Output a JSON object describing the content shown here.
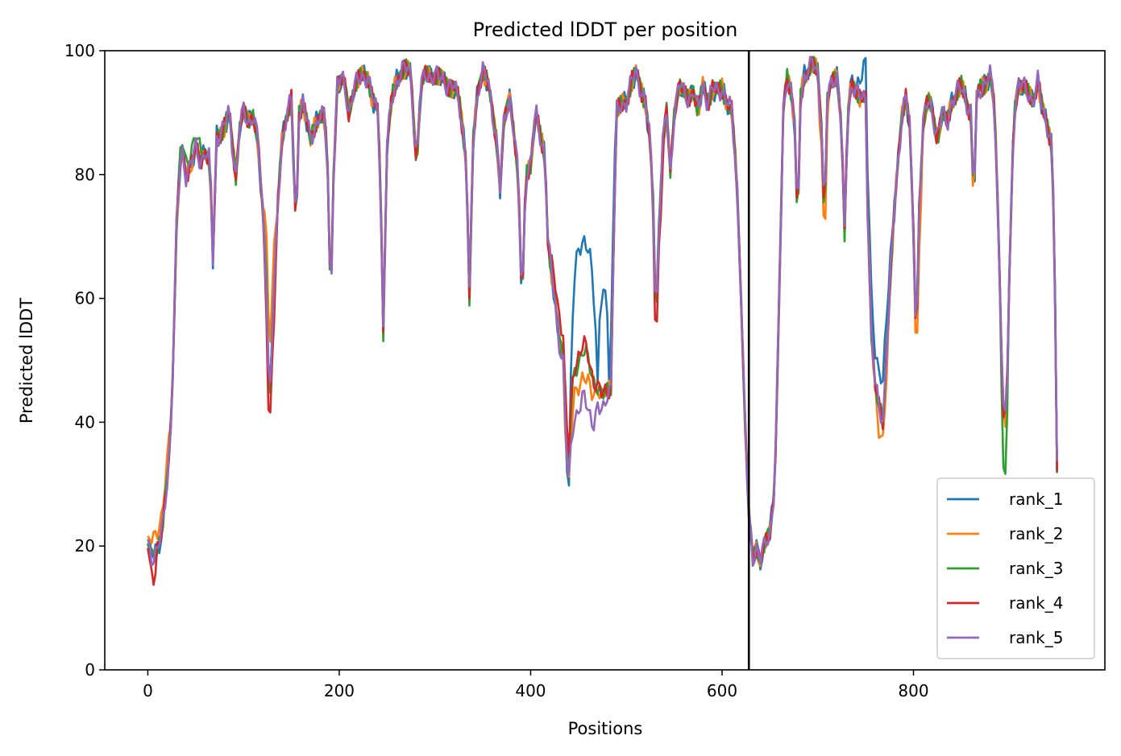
{
  "chart_data": {
    "type": "line",
    "title": "Predicted lDDT per position",
    "xlabel": "Positions",
    "ylabel": "Predicted lDDT",
    "xlim": [
      -45,
      1000
    ],
    "ylim": [
      0,
      100
    ],
    "xticks": [
      0,
      200,
      400,
      600,
      800
    ],
    "yticks": [
      0,
      20,
      40,
      60,
      80,
      100
    ],
    "grid": false,
    "legend_position": "bottom-right",
    "vertical_lines": [
      {
        "x": 628,
        "color": "#000000"
      }
    ],
    "series": [
      {
        "name": "rank_1",
        "color": "#1f77b4",
        "offsets": [
          [
            430,
            440,
            0
          ],
          [
            440,
            470,
            22
          ],
          [
            470,
            482,
            16
          ],
          [
            482,
            490,
            8
          ],
          [
            740,
            780,
            6
          ]
        ]
      },
      {
        "name": "rank_2",
        "color": "#ff7f0e",
        "offsets": [
          [
            0,
            25,
            3
          ],
          [
            120,
            135,
            8
          ],
          [
            700,
            712,
            -4
          ],
          [
            760,
            775,
            -4
          ],
          [
            800,
            810,
            -6
          ]
        ]
      },
      {
        "name": "rank_3",
        "color": "#2ca02c",
        "offsets": [
          [
            30,
            60,
            2
          ],
          [
            430,
            470,
            4
          ],
          [
            890,
            900,
            -8
          ]
        ]
      },
      {
        "name": "rank_4",
        "color": "#d62728",
        "offsets": [
          [
            0,
            10,
            -3
          ],
          [
            120,
            135,
            -5
          ],
          [
            420,
            470,
            5
          ],
          [
            525,
            540,
            -4
          ]
        ]
      },
      {
        "name": "rank_5",
        "color": "#9467bd",
        "offsets": [
          [
            440,
            480,
            -4
          ]
        ]
      }
    ],
    "base_profile": [
      [
        0,
        20
      ],
      [
        5,
        18
      ],
      [
        10,
        20
      ],
      [
        15,
        22
      ],
      [
        20,
        30
      ],
      [
        25,
        42
      ],
      [
        30,
        72
      ],
      [
        35,
        84
      ],
      [
        40,
        80
      ],
      [
        45,
        82
      ],
      [
        50,
        84
      ],
      [
        55,
        82
      ],
      [
        60,
        84
      ],
      [
        65,
        82
      ],
      [
        68,
        66
      ],
      [
        72,
        86
      ],
      [
        80,
        88
      ],
      [
        85,
        90
      ],
      [
        88,
        85
      ],
      [
        92,
        80
      ],
      [
        96,
        88
      ],
      [
        100,
        90
      ],
      [
        105,
        88
      ],
      [
        110,
        90
      ],
      [
        115,
        86
      ],
      [
        118,
        78
      ],
      [
        121,
        72
      ],
      [
        124,
        62
      ],
      [
        127,
        42
      ],
      [
        130,
        55
      ],
      [
        133,
        65
      ],
      [
        136,
        75
      ],
      [
        140,
        85
      ],
      [
        145,
        90
      ],
      [
        150,
        92
      ],
      [
        155,
        70
      ],
      [
        158,
        90
      ],
      [
        162,
        92
      ],
      [
        165,
        90
      ],
      [
        170,
        85
      ],
      [
        175,
        88
      ],
      [
        180,
        90
      ],
      [
        185,
        89
      ],
      [
        188,
        80
      ],
      [
        191,
        58
      ],
      [
        194,
        80
      ],
      [
        198,
        95
      ],
      [
        205,
        95
      ],
      [
        210,
        90
      ],
      [
        215,
        94
      ],
      [
        220,
        95
      ],
      [
        225,
        96
      ],
      [
        230,
        96
      ],
      [
        235,
        92
      ],
      [
        240,
        90
      ],
      [
        243,
        80
      ],
      [
        246,
        55
      ],
      [
        250,
        85
      ],
      [
        255,
        92
      ],
      [
        260,
        95
      ],
      [
        265,
        97
      ],
      [
        270,
        97
      ],
      [
        275,
        96
      ],
      [
        278,
        88
      ],
      [
        281,
        82
      ],
      [
        285,
        94
      ],
      [
        290,
        96
      ],
      [
        300,
        96
      ],
      [
        310,
        95
      ],
      [
        320,
        94
      ],
      [
        325,
        92
      ],
      [
        330,
        86
      ],
      [
        333,
        82
      ],
      [
        336,
        60
      ],
      [
        340,
        85
      ],
      [
        345,
        94
      ],
      [
        350,
        97
      ],
      [
        355,
        95
      ],
      [
        360,
        90
      ],
      [
        365,
        85
      ],
      [
        368,
        78
      ],
      [
        372,
        88
      ],
      [
        378,
        92
      ],
      [
        382,
        88
      ],
      [
        387,
        80
      ],
      [
        391,
        58
      ],
      [
        395,
        80
      ],
      [
        400,
        82
      ],
      [
        405,
        90
      ],
      [
        410,
        86
      ],
      [
        415,
        83
      ],
      [
        418,
        70
      ],
      [
        421,
        65
      ],
      [
        425,
        60
      ],
      [
        428,
        55
      ],
      [
        431,
        52
      ],
      [
        434,
        50
      ],
      [
        437,
        36
      ],
      [
        440,
        30
      ],
      [
        443,
        40
      ],
      [
        446,
        44
      ],
      [
        450,
        46
      ],
      [
        455,
        48
      ],
      [
        460,
        46
      ],
      [
        465,
        44
      ],
      [
        470,
        46
      ],
      [
        475,
        44
      ],
      [
        480,
        45
      ],
      [
        484,
        46
      ],
      [
        487,
        72
      ],
      [
        490,
        90
      ],
      [
        500,
        92
      ],
      [
        505,
        95
      ],
      [
        510,
        96
      ],
      [
        515,
        94
      ],
      [
        520,
        92
      ],
      [
        525,
        85
      ],
      [
        528,
        75
      ],
      [
        531,
        55
      ],
      [
        534,
        72
      ],
      [
        538,
        85
      ],
      [
        542,
        90
      ],
      [
        546,
        80
      ],
      [
        550,
        90
      ],
      [
        555,
        95
      ],
      [
        560,
        93
      ],
      [
        565,
        92
      ],
      [
        570,
        94
      ],
      [
        575,
        90
      ],
      [
        580,
        94
      ],
      [
        585,
        92
      ],
      [
        590,
        94
      ],
      [
        595,
        93
      ],
      [
        600,
        94
      ],
      [
        605,
        92
      ],
      [
        610,
        90
      ],
      [
        615,
        80
      ],
      [
        620,
        60
      ],
      [
        624,
        40
      ],
      [
        628,
        25
      ],
      [
        632,
        18
      ],
      [
        636,
        20
      ],
      [
        640,
        18
      ],
      [
        645,
        20
      ],
      [
        650,
        22
      ],
      [
        655,
        30
      ],
      [
        660,
        62
      ],
      [
        664,
        90
      ],
      [
        668,
        96
      ],
      [
        672,
        94
      ],
      [
        676,
        88
      ],
      [
        679,
        70
      ],
      [
        682,
        92
      ],
      [
        686,
        96
      ],
      [
        690,
        97
      ],
      [
        695,
        98
      ],
      [
        700,
        96
      ],
      [
        704,
        88
      ],
      [
        707,
        72
      ],
      [
        710,
        92
      ],
      [
        715,
        95
      ],
      [
        720,
        96
      ],
      [
        725,
        88
      ],
      [
        728,
        70
      ],
      [
        731,
        88
      ],
      [
        735,
        95
      ],
      [
        740,
        94
      ],
      [
        745,
        92
      ],
      [
        750,
        92
      ],
      [
        752,
        75
      ],
      [
        756,
        55
      ],
      [
        760,
        46
      ],
      [
        764,
        42
      ],
      [
        768,
        40
      ],
      [
        772,
        52
      ],
      [
        776,
        64
      ],
      [
        780,
        74
      ],
      [
        784,
        82
      ],
      [
        788,
        90
      ],
      [
        792,
        93
      ],
      [
        796,
        88
      ],
      [
        800,
        70
      ],
      [
        803,
        52
      ],
      [
        806,
        75
      ],
      [
        810,
        88
      ],
      [
        815,
        92
      ],
      [
        820,
        90
      ],
      [
        825,
        86
      ],
      [
        830,
        90
      ],
      [
        835,
        88
      ],
      [
        840,
        92
      ],
      [
        845,
        93
      ],
      [
        850,
        94
      ],
      [
        855,
        92
      ],
      [
        860,
        90
      ],
      [
        863,
        75
      ],
      [
        866,
        92
      ],
      [
        870,
        94
      ],
      [
        875,
        95
      ],
      [
        880,
        96
      ],
      [
        885,
        90
      ],
      [
        888,
        75
      ],
      [
        891,
        58
      ],
      [
        894,
        42
      ],
      [
        897,
        40
      ],
      [
        900,
        62
      ],
      [
        905,
        90
      ],
      [
        910,
        95
      ],
      [
        915,
        94
      ],
      [
        920,
        93
      ],
      [
        925,
        92
      ],
      [
        930,
        95
      ],
      [
        935,
        90
      ],
      [
        940,
        88
      ],
      [
        945,
        85
      ],
      [
        948,
        60
      ],
      [
        950,
        32
      ]
    ]
  }
}
